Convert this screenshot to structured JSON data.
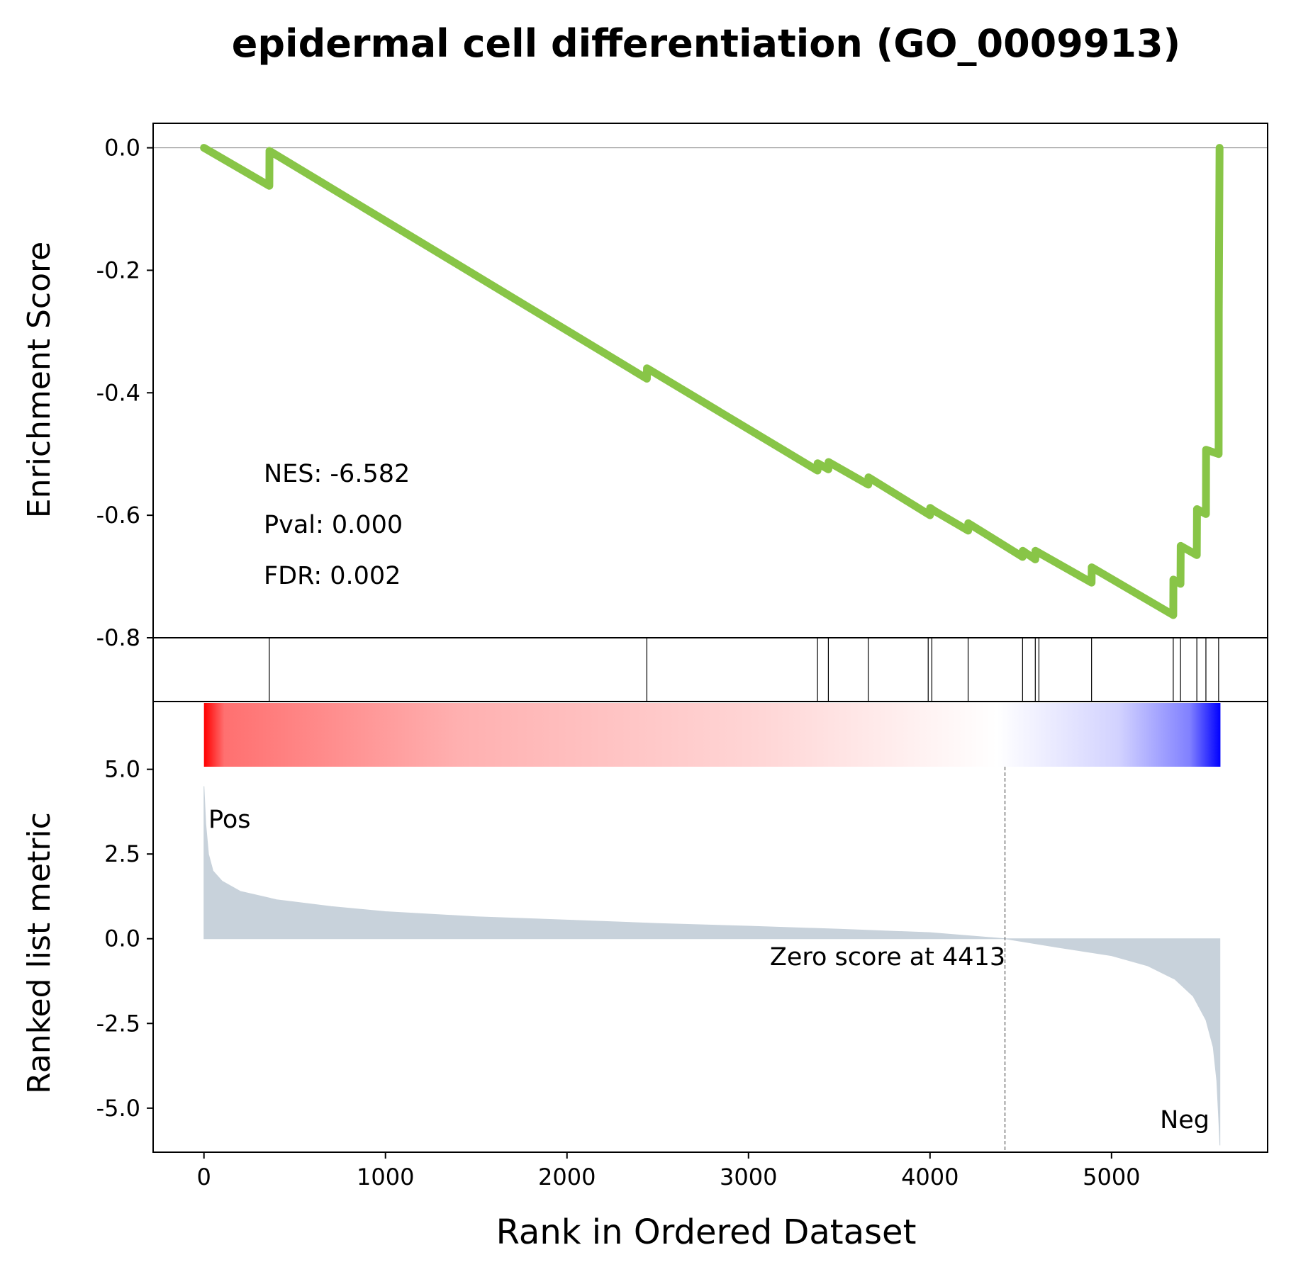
{
  "chart_data": {
    "type": "line",
    "title": "epidermal cell differentiation (GO_0009913)",
    "xlabel": "Rank in Ordered Dataset",
    "x_range": [
      -280,
      5860
    ],
    "x_ticks": [
      0,
      1000,
      2000,
      3000,
      4000,
      5000
    ],
    "colors": {
      "es_line": "#88c547",
      "metric_fill": "#c8d2db",
      "pos": "#ff0000",
      "neg": "#0000ff",
      "hit_line": "#000000"
    },
    "es_panel": {
      "ylabel": "Enrichment Score",
      "ylim": [
        -0.8,
        0.04
      ],
      "y_ticks": [
        0.0,
        -0.2,
        -0.4,
        -0.6,
        -0.8
      ],
      "tick_labels": [
        "0.0",
        "-0.2",
        "-0.4",
        "-0.6",
        "-0.8"
      ],
      "stats": {
        "nes": "NES: -6.582",
        "pval": "Pval: 0.000",
        "fdr": "FDR: 0.002"
      },
      "series": [
        {
          "x": 0,
          "y": 0.0
        },
        {
          "x": 360,
          "y": -0.062
        },
        {
          "x": 361,
          "y": -0.005
        },
        {
          "x": 2440,
          "y": -0.377
        },
        {
          "x": 2441,
          "y": -0.36
        },
        {
          "x": 3380,
          "y": -0.527
        },
        {
          "x": 3381,
          "y": -0.515
        },
        {
          "x": 3440,
          "y": -0.525
        },
        {
          "x": 3441,
          "y": -0.513
        },
        {
          "x": 3660,
          "y": -0.55
        },
        {
          "x": 3661,
          "y": -0.538
        },
        {
          "x": 4000,
          "y": -0.6
        },
        {
          "x": 4001,
          "y": -0.588
        },
        {
          "x": 4020,
          "y": -0.592
        },
        {
          "x": 4210,
          "y": -0.625
        },
        {
          "x": 4211,
          "y": -0.613
        },
        {
          "x": 4510,
          "y": -0.668
        },
        {
          "x": 4511,
          "y": -0.658
        },
        {
          "x": 4580,
          "y": -0.672
        },
        {
          "x": 4581,
          "y": -0.658
        },
        {
          "x": 4890,
          "y": -0.71
        },
        {
          "x": 4891,
          "y": -0.685
        },
        {
          "x": 5340,
          "y": -0.763
        },
        {
          "x": 5341,
          "y": -0.705
        },
        {
          "x": 5380,
          "y": -0.712
        },
        {
          "x": 5381,
          "y": -0.65
        },
        {
          "x": 5470,
          "y": -0.665
        },
        {
          "x": 5471,
          "y": -0.59
        },
        {
          "x": 5520,
          "y": -0.598
        },
        {
          "x": 5521,
          "y": -0.493
        },
        {
          "x": 5590,
          "y": -0.5
        },
        {
          "x": 5591,
          "y": -0.27
        },
        {
          "x": 5595,
          "y": 0.0
        }
      ]
    },
    "hits": [
      360,
      2440,
      3380,
      3440,
      3660,
      3990,
      4010,
      4210,
      4510,
      4580,
      4600,
      4890,
      5340,
      5380,
      5470,
      5520,
      5590
    ],
    "metric_panel": {
      "ylabel": "Ranked list metric",
      "ylim": [
        -6.3,
        7.0
      ],
      "y_ticks": [
        5.0,
        2.5,
        0.0,
        -2.5,
        -5.0
      ],
      "tick_labels": [
        "5.0",
        "2.5",
        "0.0",
        "-2.5",
        "-5.0"
      ],
      "pos_label": "Pos",
      "neg_label": "Neg",
      "zero_rank": 4413,
      "zero_label": "Zero score at 4413",
      "n": 5600,
      "series": [
        {
          "x": 0,
          "y": 4.5
        },
        {
          "x": 10,
          "y": 3.4
        },
        {
          "x": 25,
          "y": 2.5
        },
        {
          "x": 50,
          "y": 2.0
        },
        {
          "x": 100,
          "y": 1.7
        },
        {
          "x": 200,
          "y": 1.4
        },
        {
          "x": 400,
          "y": 1.15
        },
        {
          "x": 700,
          "y": 0.95
        },
        {
          "x": 1000,
          "y": 0.8
        },
        {
          "x": 1500,
          "y": 0.65
        },
        {
          "x": 2000,
          "y": 0.55
        },
        {
          "x": 2500,
          "y": 0.45
        },
        {
          "x": 3000,
          "y": 0.37
        },
        {
          "x": 3500,
          "y": 0.28
        },
        {
          "x": 4000,
          "y": 0.18
        },
        {
          "x": 4413,
          "y": 0.0
        },
        {
          "x": 4700,
          "y": -0.25
        },
        {
          "x": 5000,
          "y": -0.5
        },
        {
          "x": 5200,
          "y": -0.8
        },
        {
          "x": 5350,
          "y": -1.2
        },
        {
          "x": 5450,
          "y": -1.7
        },
        {
          "x": 5520,
          "y": -2.4
        },
        {
          "x": 5560,
          "y": -3.2
        },
        {
          "x": 5580,
          "y": -4.2
        },
        {
          "x": 5592,
          "y": -5.5
        },
        {
          "x": 5597,
          "y": -6.1
        }
      ]
    }
  }
}
